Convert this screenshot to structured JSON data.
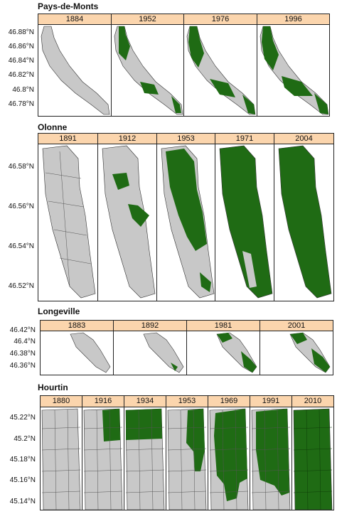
{
  "colors": {
    "strip_bg": "#fbd5ad",
    "forest_green": "#1f6b14",
    "non_forest_grey": "#c8c8c8",
    "parcel_lines": "#333333"
  },
  "sites": [
    {
      "name": "Pays-de-Monts",
      "years": [
        "1884",
        "1952",
        "1976",
        "1996"
      ],
      "y_ticks": [
        "46.88°N",
        "46.86°N",
        "46.84°N",
        "46.82°N",
        "46.8°N",
        "46.78°N"
      ],
      "green_fraction": [
        0.0,
        0.25,
        0.35,
        0.45
      ]
    },
    {
      "name": "Olonne",
      "years": [
        "1891",
        "1912",
        "1953",
        "1971",
        "2004"
      ],
      "y_ticks": [
        "46.58°N",
        "46.56°N",
        "46.54°N",
        "46.52°N"
      ],
      "green_fraction": [
        0.0,
        0.08,
        0.55,
        0.85,
        0.92
      ]
    },
    {
      "name": "Longeville",
      "years": [
        "1883",
        "1892",
        "1981",
        "2001"
      ],
      "y_ticks": [
        "46.42°N",
        "46.4°N",
        "46.38°N",
        "46.36°N"
      ],
      "green_fraction": [
        0.0,
        0.05,
        0.45,
        0.55
      ]
    },
    {
      "name": "Hourtin",
      "years": [
        "1880",
        "1916",
        "1934",
        "1953",
        "1969",
        "1991",
        "2010"
      ],
      "y_ticks": [
        "45.22°N",
        "45.2°N",
        "45.18°N",
        "45.16°N",
        "45.14°N"
      ],
      "green_fraction": [
        0.0,
        0.25,
        0.18,
        0.35,
        0.72,
        0.8,
        1.0
      ]
    }
  ]
}
